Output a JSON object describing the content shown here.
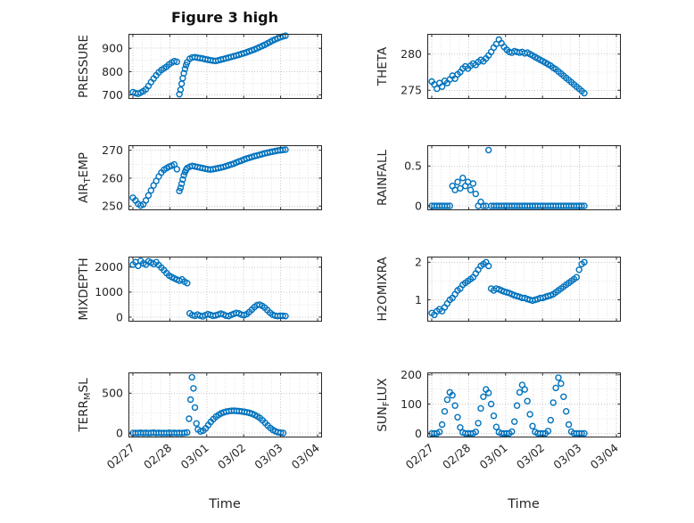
{
  "title": "Figure 3 high",
  "xlabel": "Time",
  "colors": {
    "marker": "#0072BD",
    "axes": "#262626",
    "grid_major": "#c9c9c9",
    "grid_minor": "#e4e4e4"
  },
  "x_axis": {
    "label": "Time",
    "tick_positions_days": [
      0,
      1,
      2,
      3,
      4,
      5
    ],
    "tick_labels": [
      "02/27",
      "02/28",
      "03/01",
      "03/02",
      "03/03",
      "03/04"
    ]
  },
  "time_days_default": [
    0,
    0.07,
    0.14,
    0.21,
    0.28,
    0.35,
    0.42,
    0.49,
    0.56,
    0.63,
    0.7,
    0.77,
    0.84,
    0.91,
    0.98,
    1.05,
    1.12,
    1.19,
    1.26,
    1.33,
    1.4,
    1.47,
    1.54,
    1.61,
    1.68,
    1.75,
    1.82,
    1.89,
    1.96,
    2.03,
    2.1,
    2.17,
    2.24,
    2.31,
    2.38,
    2.45,
    2.52,
    2.59,
    2.66,
    2.73,
    2.8,
    2.87,
    2.94,
    3.01,
    3.08,
    3.15,
    3.22,
    3.29,
    3.36,
    3.43,
    3.5,
    3.57,
    3.64,
    3.71,
    3.78,
    3.85,
    3.92,
    3.99,
    4.06,
    4.13
  ],
  "chart_data": [
    {
      "type": "scatter",
      "name": "PRESSURE",
      "row": 0,
      "col": 0,
      "ylabel": {
        "pre": "PRESSURE",
        "sub": "",
        "post": ""
      },
      "yticks": [
        700,
        800,
        900
      ],
      "ytick_labels": [
        "700",
        "800",
        "900"
      ],
      "ylim": [
        683,
        962
      ],
      "x": [
        0,
        0.07,
        0.14,
        0.21,
        0.28,
        0.35,
        0.42,
        0.49,
        0.56,
        0.63,
        0.7,
        0.77,
        0.84,
        0.91,
        0.98,
        1.05,
        1.12,
        1.19,
        1.26,
        1.29,
        1.32,
        1.35,
        1.38,
        1.41,
        1.44,
        1.47,
        1.54,
        1.61,
        1.68,
        1.75,
        1.82,
        1.89,
        1.96,
        2.03,
        2.1,
        2.17,
        2.24,
        2.31,
        2.38,
        2.45,
        2.52,
        2.59,
        2.66,
        2.73,
        2.8,
        2.87,
        2.94,
        3.01,
        3.08,
        3.15,
        3.22,
        3.29,
        3.36,
        3.43,
        3.5,
        3.57,
        3.64,
        3.71,
        3.78,
        3.85,
        3.92,
        3.99,
        4.06,
        4.13
      ],
      "y": [
        712,
        708,
        705,
        710,
        716,
        724,
        738,
        755,
        770,
        784,
        797,
        807,
        814,
        821,
        831,
        839,
        845,
        842,
        703,
        722,
        748,
        772,
        793,
        812,
        828,
        840,
        855,
        861,
        862,
        860,
        858,
        856,
        853,
        851,
        849,
        847,
        846,
        848,
        851,
        854,
        857,
        860,
        863,
        866,
        869,
        872,
        876,
        879,
        883,
        887,
        891,
        895,
        900,
        905,
        910,
        915,
        921,
        927,
        933,
        938,
        943,
        947,
        951,
        954
      ]
    },
    {
      "type": "scatter",
      "name": "THETA",
      "row": 0,
      "col": 1,
      "ylabel": {
        "pre": "THETA",
        "sub": "",
        "post": ""
      },
      "yticks": [
        275,
        280
      ],
      "ytick_labels": [
        "275",
        "280"
      ],
      "ylim": [
        273.8,
        282.8
      ],
      "x": null,
      "y": [
        276.2,
        275.8,
        275.2,
        276,
        275.5,
        276.3,
        276,
        276.5,
        277,
        276.6,
        277.2,
        277.5,
        278,
        278.3,
        278,
        278.4,
        278.7,
        278.5,
        278.9,
        279.2,
        279,
        279.4,
        279.8,
        280.3,
        280.9,
        281.4,
        282,
        281.5,
        281,
        280.6,
        280.3,
        280.2,
        280.4,
        280.3,
        280.2,
        280.3,
        280.1,
        280.2,
        280,
        279.8,
        279.6,
        279.4,
        279.2,
        279,
        278.8,
        278.6,
        278.4,
        278.1,
        277.9,
        277.6,
        277.3,
        277,
        276.7,
        276.4,
        276.1,
        275.8,
        275.5,
        275.2,
        274.9,
        274.6
      ]
    },
    {
      "type": "scatter",
      "name": "AIR_TEMP",
      "row": 1,
      "col": 0,
      "ylabel": {
        "pre": "AIR",
        "sub": "T",
        "post": "EMP"
      },
      "yticks": [
        250,
        260,
        270
      ],
      "ytick_labels": [
        "250",
        "260",
        "270"
      ],
      "ylim": [
        248.5,
        271.8
      ],
      "x": [
        0,
        0.07,
        0.14,
        0.21,
        0.28,
        0.35,
        0.42,
        0.49,
        0.56,
        0.63,
        0.7,
        0.77,
        0.84,
        0.91,
        0.98,
        1.05,
        1.12,
        1.19,
        1.26,
        1.29,
        1.32,
        1.35,
        1.38,
        1.41,
        1.44,
        1.47,
        1.54,
        1.61,
        1.68,
        1.75,
        1.82,
        1.89,
        1.96,
        2.03,
        2.1,
        2.17,
        2.24,
        2.31,
        2.38,
        2.45,
        2.52,
        2.59,
        2.66,
        2.73,
        2.8,
        2.87,
        2.94,
        3.01,
        3.08,
        3.15,
        3.22,
        3.29,
        3.36,
        3.43,
        3.5,
        3.57,
        3.64,
        3.71,
        3.78,
        3.85,
        3.92,
        3.99,
        4.06,
        4.13
      ],
      "y": [
        253,
        252,
        250.8,
        250.2,
        250.6,
        252,
        253.8,
        255.6,
        257.4,
        259,
        260.6,
        262,
        263,
        263.6,
        264.1,
        264.5,
        264.9,
        263.2,
        255.4,
        256.5,
        258,
        259.5,
        261,
        262.2,
        263,
        263.6,
        264.1,
        264.4,
        264.2,
        264,
        263.8,
        263.6,
        263.4,
        263.2,
        263.1,
        263.2,
        263.4,
        263.6,
        263.8,
        264,
        264.3,
        264.6,
        264.9,
        265.2,
        265.6,
        266,
        266.3,
        266.7,
        267,
        267.3,
        267.6,
        267.9,
        268.1,
        268.4,
        268.6,
        268.9,
        269.1,
        269.3,
        269.5,
        269.7,
        269.9,
        270,
        270.1,
        270.2
      ]
    },
    {
      "type": "scatter",
      "name": "RAINFALL",
      "row": 1,
      "col": 1,
      "ylabel": {
        "pre": "RAINFALL",
        "sub": "",
        "post": ""
      },
      "yticks": [
        0,
        0.5
      ],
      "ytick_labels": [
        "0",
        "0.5"
      ],
      "ylim": [
        -0.055,
        0.76
      ],
      "x": null,
      "y": [
        0,
        0,
        0,
        0,
        0,
        0,
        0,
        0,
        0.25,
        0.2,
        0.3,
        0.22,
        0.35,
        0.25,
        0.3,
        0.2,
        0.28,
        0.15,
        0,
        0.05,
        0,
        0,
        0.7,
        0,
        0,
        0,
        0,
        0,
        0,
        0,
        0,
        0,
        0,
        0,
        0,
        0,
        0,
        0,
        0,
        0,
        0,
        0,
        0,
        0,
        0,
        0,
        0,
        0,
        0,
        0,
        0,
        0,
        0,
        0,
        0,
        0,
        0,
        0,
        0,
        0
      ]
    },
    {
      "type": "scatter",
      "name": "MIXDEPTH",
      "row": 2,
      "col": 0,
      "ylabel": {
        "pre": "MIXDEPTH",
        "sub": "",
        "post": ""
      },
      "yticks": [
        0,
        1000,
        2000
      ],
      "ytick_labels": [
        "0",
        "1000",
        "2000"
      ],
      "ylim": [
        -180,
        2420
      ],
      "x": null,
      "y": [
        2100,
        2200,
        2050,
        2250,
        2150,
        2100,
        2230,
        2180,
        2120,
        2200,
        2080,
        1980,
        1880,
        1760,
        1660,
        1600,
        1550,
        1500,
        1460,
        1510,
        1420,
        1360,
        150,
        80,
        50,
        100,
        60,
        30,
        80,
        120,
        90,
        50,
        70,
        100,
        140,
        110,
        60,
        40,
        90,
        130,
        170,
        150,
        100,
        80,
        120,
        200,
        300,
        400,
        480,
        500,
        450,
        380,
        280,
        180,
        100,
        60,
        40,
        60,
        50,
        40
      ]
    },
    {
      "type": "scatter",
      "name": "H2OMIXRA",
      "row": 2,
      "col": 1,
      "ylabel": {
        "pre": "H2OMIXRA",
        "sub": "",
        "post": ""
      },
      "yticks": [
        1,
        2
      ],
      "ytick_labels": [
        "1",
        "2"
      ],
      "ylim": [
        0.42,
        2.15
      ],
      "x": null,
      "y": [
        0.65,
        0.6,
        0.7,
        0.75,
        0.7,
        0.8,
        0.9,
        1,
        1.05,
        1.15,
        1.25,
        1.3,
        1.4,
        1.45,
        1.5,
        1.55,
        1.6,
        1.7,
        1.8,
        1.9,
        1.95,
        2,
        1.9,
        1.3,
        1.25,
        1.3,
        1.28,
        1.25,
        1.22,
        1.2,
        1.18,
        1.15,
        1.12,
        1.1,
        1.08,
        1.05,
        1.05,
        1.02,
        1,
        0.98,
        1,
        1.02,
        1.05,
        1.05,
        1.08,
        1.1,
        1.12,
        1.15,
        1.2,
        1.25,
        1.3,
        1.35,
        1.4,
        1.45,
        1.5,
        1.55,
        1.6,
        1.8,
        1.95,
        2
      ]
    },
    {
      "type": "scatter",
      "name": "TERR_MSL",
      "row": 3,
      "col": 0,
      "ylabel": {
        "pre": "TERR",
        "sub": "M",
        "post": "SL"
      },
      "yticks": [
        0,
        500
      ],
      "ytick_labels": [
        "0",
        "500"
      ],
      "ylim": [
        -55,
        760
      ],
      "x": [
        0,
        0.07,
        0.14,
        0.21,
        0.28,
        0.35,
        0.42,
        0.49,
        0.56,
        0.63,
        0.7,
        0.77,
        0.84,
        0.91,
        0.98,
        1.05,
        1.12,
        1.19,
        1.26,
        1.33,
        1.4,
        1.47,
        1.52,
        1.56,
        1.6,
        1.64,
        1.68,
        1.72,
        1.76,
        1.83,
        1.9,
        1.97,
        2.04,
        2.11,
        2.18,
        2.25,
        2.32,
        2.39,
        2.46,
        2.53,
        2.6,
        2.67,
        2.74,
        2.81,
        2.88,
        2.95,
        3.02,
        3.09,
        3.16,
        3.23,
        3.3,
        3.37,
        3.44,
        3.51,
        3.58,
        3.65,
        3.72,
        3.79,
        3.86,
        3.93,
        4,
        4.07
      ],
      "y": [
        0,
        2,
        0,
        4,
        0,
        3,
        0,
        2,
        5,
        0,
        3,
        0,
        2,
        0,
        4,
        0,
        3,
        0,
        2,
        0,
        3,
        8,
        180,
        420,
        700,
        560,
        320,
        120,
        45,
        20,
        30,
        60,
        100,
        140,
        175,
        205,
        228,
        246,
        260,
        269,
        275,
        279,
        280,
        278,
        275,
        271,
        266,
        260,
        252,
        242,
        228,
        210,
        188,
        160,
        128,
        95,
        65,
        40,
        22,
        10,
        4,
        1
      ]
    },
    {
      "type": "scatter",
      "name": "SUN_FLUX",
      "row": 3,
      "col": 1,
      "ylabel": {
        "pre": "SUN",
        "sub": "F",
        "post": "LUX"
      },
      "yticks": [
        0,
        100,
        200
      ],
      "ytick_labels": [
        "0",
        "100",
        "200"
      ],
      "ylim": [
        -14,
        208
      ],
      "x": null,
      "y": [
        0,
        0,
        0,
        5,
        30,
        75,
        115,
        140,
        130,
        95,
        55,
        20,
        3,
        0,
        0,
        0,
        0,
        5,
        35,
        85,
        125,
        150,
        138,
        100,
        60,
        22,
        4,
        0,
        0,
        0,
        0,
        6,
        40,
        95,
        140,
        165,
        150,
        110,
        65,
        25,
        5,
        0,
        0,
        0,
        0,
        8,
        45,
        105,
        155,
        190,
        170,
        125,
        75,
        30,
        6,
        0,
        0,
        0,
        0,
        0
      ]
    }
  ]
}
